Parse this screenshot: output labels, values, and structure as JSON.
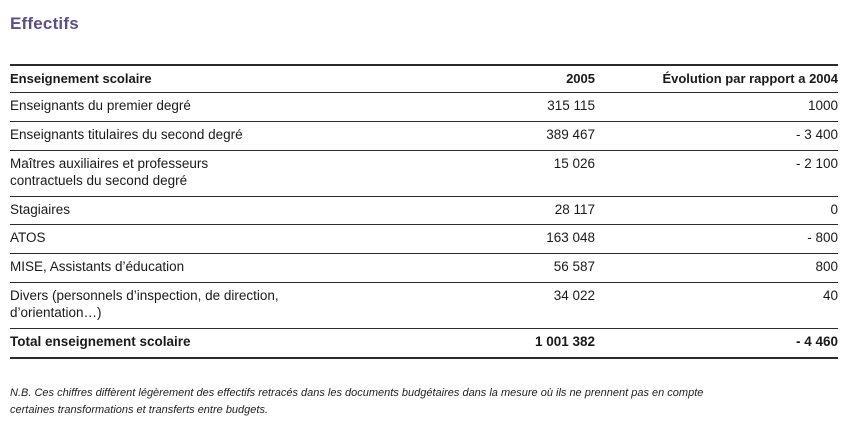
{
  "page_title": "Effectifs",
  "colors": {
    "title": "#5c4e87",
    "rule": "#2b2b2b"
  },
  "table": {
    "headers": [
      "Enseignement scolaire",
      "2005",
      "Évolution par rapport a 2004"
    ],
    "rows": [
      {
        "label": "Enseignants du premier degré",
        "v2005": "315 115",
        "evolution": "1000"
      },
      {
        "label": "Enseignants titulaires du second degré",
        "v2005": "389 467",
        "evolution": "- 3 400"
      },
      {
        "label": "Maîtres auxiliaires et professeurs\ncontractuels du second degré",
        "v2005": "15 026",
        "evolution": "- 2 100"
      },
      {
        "label": "Stagiaires",
        "v2005": "28 117",
        "evolution": "0"
      },
      {
        "label": "ATOS",
        "v2005": "163 048",
        "evolution": "- 800"
      },
      {
        "label": "MISE, Assistants d’éducation",
        "v2005": "56 587",
        "evolution": "800"
      },
      {
        "label": "Divers (personnels d’inspection, de direction,\nd’orientation…)",
        "v2005": "34 022",
        "evolution": "40"
      }
    ],
    "total_row": {
      "label": "Total enseignement scolaire",
      "v2005": "1 001 382",
      "evolution": "- 4 460"
    }
  },
  "footnote": "N.B. Ces chiffres diffèrent légèrement des effectifs retracés dans les documents budgétaires dans la mesure où ils ne prennent pas en compte\ncertaines transformations et transferts entre budgets."
}
